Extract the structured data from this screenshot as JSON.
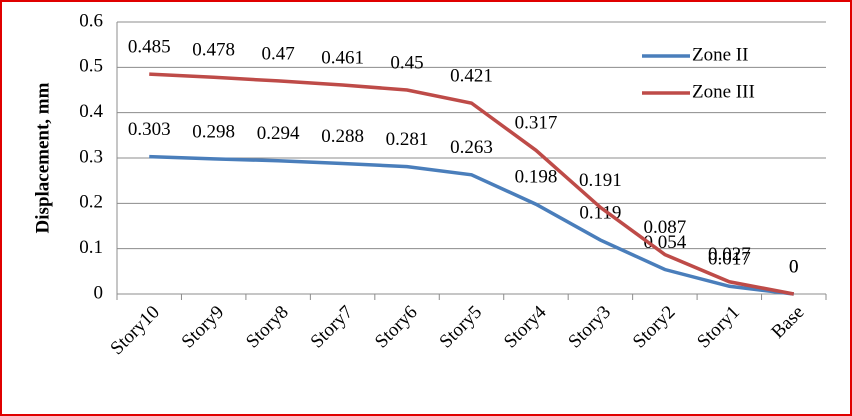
{
  "chart_data": {
    "type": "line",
    "y_label": "Displacement, mm",
    "categories": [
      "Story10",
      "Story9",
      "Story8",
      "Story7",
      "Story6",
      "Story5",
      "Story4",
      "Story3",
      "Story2",
      "Story1",
      "Base"
    ],
    "series": [
      {
        "name": "Zone II",
        "color": "#4a7ebb",
        "values": [
          0.303,
          0.298,
          0.294,
          0.288,
          0.281,
          0.263,
          0.198,
          0.119,
          0.054,
          0.017,
          0
        ]
      },
      {
        "name": "Zone III",
        "color": "#be4b48",
        "values": [
          0.485,
          0.478,
          0.47,
          0.461,
          0.45,
          0.421,
          0.317,
          0.191,
          0.087,
          0.027,
          0
        ]
      }
    ],
    "ylim": [
      0,
      0.6
    ],
    "yticks": [
      0,
      0.1,
      0.2,
      0.3,
      0.4,
      0.5,
      0.6
    ],
    "grid": true,
    "legend": "upper right",
    "data_labels": true
  }
}
